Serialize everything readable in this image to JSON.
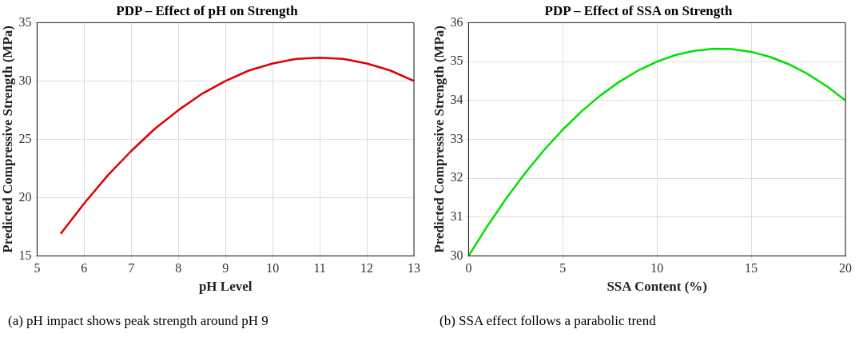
{
  "chart_data": [
    {
      "type": "line",
      "title": "PDP – Effect of pH on Strength",
      "xlabel": "pH Level",
      "ylabel": "Predicted Compressive Strength (MPa)",
      "x": [
        5.5,
        6,
        6.5,
        7,
        7.5,
        8,
        8.5,
        9,
        9.5,
        10,
        10.5,
        11,
        11.5,
        12,
        12.5,
        13
      ],
      "series": [
        {
          "color": "#e00000",
          "values": [
            16.9,
            19.5,
            21.9,
            24,
            25.9,
            27.5,
            28.9,
            30,
            30.9,
            31.5,
            31.9,
            32,
            31.9,
            31.5,
            30.9,
            30
          ]
        }
      ],
      "xlim": [
        5,
        13
      ],
      "xticks": [
        5,
        6,
        7,
        8,
        9,
        10,
        11,
        12,
        13
      ],
      "ylim": [
        15,
        35
      ],
      "yticks": [
        15,
        20,
        25,
        30,
        35
      ],
      "grid": true,
      "annotations": [
        "(a) pH impact shows peak strength around pH 9"
      ]
    },
    {
      "type": "line",
      "title": "PDP – Effect of SSA on Strength",
      "xlabel": "SSA Content (%)",
      "ylabel": "Predicted Compressive Strength (MPa)",
      "x": [
        0,
        1,
        2,
        3,
        4,
        5,
        6,
        7,
        8,
        9,
        10,
        11,
        12,
        13,
        14,
        15,
        16,
        17,
        18,
        19,
        20
      ],
      "series": [
        {
          "color": "#00e000",
          "values": [
            30,
            30.77,
            31.48,
            32.13,
            32.72,
            33.25,
            33.72,
            34.13,
            34.48,
            34.77,
            35,
            35.17,
            35.28,
            35.33,
            35.32,
            35.25,
            35.12,
            34.93,
            34.68,
            34.37,
            34
          ]
        }
      ],
      "xlim": [
        0,
        20
      ],
      "xticks": [
        0,
        5,
        10,
        15,
        20
      ],
      "ylim": [
        30,
        36
      ],
      "yticks": [
        30,
        31,
        32,
        33,
        34,
        35,
        36
      ],
      "grid": true,
      "annotations": [
        "(b) SSA effect follows a parabolic trend"
      ]
    }
  ]
}
